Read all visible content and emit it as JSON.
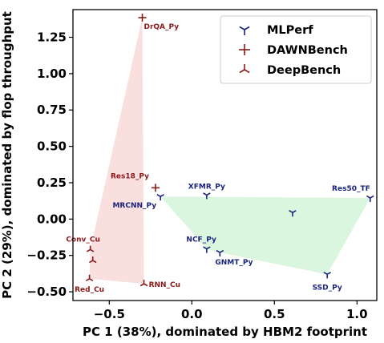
{
  "chart_data": {
    "type": "scatter",
    "xlabel": "PC 1 (38%), dominated by HBM2 footprint",
    "ylabel": "PC 2 (29%), dominated by flop throughput",
    "xlim": [
      -0.72,
      1.12
    ],
    "ylim": [
      -0.56,
      1.44
    ],
    "x_ticks": [
      -0.5,
      0.0,
      0.5,
      1.0
    ],
    "x_tick_labels": [
      "−0.5",
      "0.0",
      "0.5",
      "1.0"
    ],
    "y_ticks": [
      -0.5,
      -0.25,
      0.0,
      0.25,
      0.5,
      0.75,
      1.0,
      1.25
    ],
    "y_tick_labels": [
      "−0.50",
      "−0.25",
      "0.00",
      "0.25",
      "0.50",
      "0.75",
      "1.00",
      "1.25"
    ],
    "grid": false,
    "legend_position": "top-right",
    "series": [
      {
        "name": "MLPerf",
        "marker": "tri-down",
        "color": "#1a237e",
        "label_color": "#1a237e",
        "hull_color": "#d6f5dc",
        "hull": [
          "MRCNN_Py",
          "Res50_TF",
          "SSD_Py",
          "GNMT_Py",
          "NCF_Py"
        ],
        "points": [
          {
            "x": -0.19,
            "y": 0.155,
            "label": "MRCNN_Py",
            "anchor": "end"
          },
          {
            "x": 0.09,
            "y": 0.165,
            "label": "XFMR_Py",
            "anchor": "middle"
          },
          {
            "x": 1.08,
            "y": 0.145,
            "label": "Res50_TF",
            "anchor": "end"
          },
          {
            "x": 0.61,
            "y": 0.045,
            "label": "",
            "anchor": "middle"
          },
          {
            "x": 0.09,
            "y": -0.205,
            "label": "NCF_Py",
            "anchor": "end"
          },
          {
            "x": 0.17,
            "y": -0.23,
            "label": "GNMT_Py",
            "anchor": "start"
          },
          {
            "x": 0.82,
            "y": -0.38,
            "label": "SSD_Py",
            "anchor": "middle"
          }
        ]
      },
      {
        "name": "DAWNBench",
        "marker": "plus",
        "color": "#8b1a1a",
        "label_color": "#8b1a1a",
        "hull_color": "",
        "hull": [],
        "points": [
          {
            "x": -0.3,
            "y": 1.385,
            "label": "DrQA_Py",
            "anchor": "start"
          },
          {
            "x": -0.22,
            "y": 0.215,
            "label": "Res18_Py",
            "anchor": "end"
          }
        ]
      },
      {
        "name": "DeepBench",
        "marker": "tri-up",
        "color": "#8b1a1a",
        "label_color": "#8b1a1a",
        "hull_color": "#fadbdb",
        "hull": [
          "DrQA_Py",
          "RNN_Cu",
          "Red_Cu",
          "Conv_Cu"
        ],
        "points": [
          {
            "x": -0.615,
            "y": -0.21,
            "label": "Conv_Cu",
            "anchor": "middle"
          },
          {
            "x": -0.6,
            "y": -0.285,
            "label": "",
            "anchor": "middle"
          },
          {
            "x": -0.62,
            "y": -0.41,
            "label": "Red_Cu",
            "anchor": "middle"
          },
          {
            "x": -0.29,
            "y": -0.445,
            "label": "RNN_Cu",
            "anchor": "start"
          }
        ]
      }
    ]
  }
}
